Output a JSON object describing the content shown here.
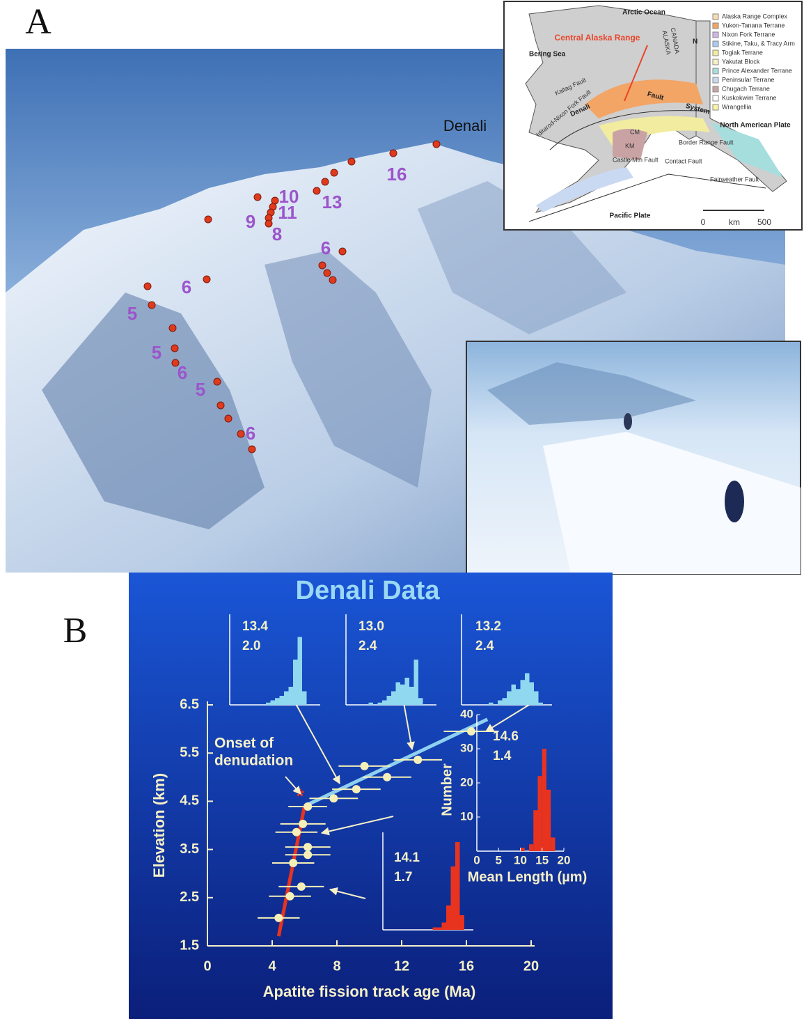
{
  "figure_labels": {
    "a": "A",
    "b": "B"
  },
  "panel_a": {
    "peak_label": "Denali",
    "sample_labels": [
      "16",
      "13",
      "10",
      "11",
      "9",
      "8",
      "6",
      "6",
      "5",
      "5",
      "6",
      "5",
      "6"
    ]
  },
  "map": {
    "ocean_labels": [
      "Arctic Ocean",
      "Bering Sea"
    ],
    "highlight": "Central Alaska Range",
    "country_labels": [
      "CANADA",
      "ALASKA"
    ],
    "north": "N",
    "fault_labels": [
      "Kaltag Fault",
      "Iditarod-Nixon Fork Fault",
      "Denali",
      "Fault",
      "System",
      "Castle Mtn Fault",
      "Border Range Fault",
      "Contact Fault",
      "Fairweather Fault"
    ],
    "plate_labels": [
      "North American Plate",
      "Pacific Plate"
    ],
    "block_labels": [
      "CM",
      "KM"
    ],
    "scale": [
      "0",
      "km",
      "500"
    ],
    "legend": [
      {
        "label": "Alaska Range Complex",
        "color": "#f7dcb4"
      },
      {
        "label": "Yukon-Tanana Terrane",
        "color": "#f2a565"
      },
      {
        "label": "Nixon Fork Terrane",
        "color": "#cdb6e4"
      },
      {
        "label": "Stikine, Taku, & Tracy Arm",
        "color": "#a9c9f0"
      },
      {
        "label": "Togiak Terrane",
        "color": "#f2eca0"
      },
      {
        "label": "Yakutat Block",
        "color": "#f8efc4"
      },
      {
        "label": "Prince Alexander Terrane",
        "color": "#a6dede"
      },
      {
        "label": "Peninsular Terrane",
        "color": "#cad9f2"
      },
      {
        "label": "Chugach Terrane",
        "color": "#c9a3a3"
      },
      {
        "label": "Kuskokwim Terrane",
        "color": "#ffffff"
      },
      {
        "label": "Wrangellia",
        "color": "#f8f6a2"
      }
    ]
  },
  "chart_data": {
    "type": "scatter",
    "title": "Denali Data",
    "xlabel": "Apatite fission track age (Ma)",
    "ylabel": "Elevation (km)",
    "xlim": [
      0,
      20
    ],
    "ylim": [
      1.5,
      6.5
    ],
    "xticks": [
      0,
      4,
      8,
      12,
      16,
      20
    ],
    "yticks": [
      1.5,
      2.5,
      3.5,
      4.5,
      5.5,
      6.5
    ],
    "series": [
      {
        "color": "#f6f0b8",
        "x": [
          16.3,
          13.0,
          9.7,
          11.1,
          9.2,
          7.8,
          6.2,
          5.9,
          5.5,
          6.2,
          6.2,
          5.3,
          5.8,
          5.1,
          4.4
        ],
        "y": [
          5.95,
          5.36,
          5.23,
          5.0,
          4.75,
          4.56,
          4.39,
          4.03,
          3.86,
          3.55,
          3.39,
          3.22,
          2.73,
          2.53,
          2.08
        ],
        "xerr": [
          1.7,
          1.5,
          1.6,
          1.5,
          1.5,
          1.5,
          1.2,
          1.4,
          1.3,
          1.4,
          1.4,
          1.3,
          1.4,
          1.3,
          1.3
        ]
      }
    ],
    "lines": [
      {
        "color": "#e8331f",
        "x": [
          4.4,
          6.0
        ],
        "y": [
          1.7,
          4.4
        ]
      },
      {
        "color": "#8fd0f0",
        "x": [
          6.0,
          17.3
        ],
        "y": [
          4.4,
          6.2
        ]
      }
    ],
    "annotation": [
      "Onset of",
      "denudation"
    ],
    "histograms": [
      {
        "color": "#8fd8f0",
        "text": [
          "13.4",
          "2.0"
        ],
        "bins": [
          5,
          6,
          7,
          8,
          9,
          10,
          11,
          12,
          13,
          14,
          15,
          16,
          17,
          18
        ],
        "counts": [
          0,
          0,
          0,
          1,
          2,
          3,
          4,
          6,
          8,
          20,
          30,
          6,
          0
        ]
      },
      {
        "color": "#8fd8f0",
        "text": [
          "13.0",
          "2.4"
        ],
        "bins": [
          5,
          6,
          7,
          8,
          9,
          10,
          11,
          12,
          13,
          14,
          15,
          16,
          17,
          18
        ],
        "counts": [
          1,
          0,
          1,
          2,
          4,
          6,
          10,
          9,
          12,
          8,
          20,
          3,
          0
        ]
      },
      {
        "color": "#8fd8f0",
        "text": [
          "13.2",
          "2.4"
        ],
        "bins": [
          5,
          6,
          7,
          8,
          9,
          10,
          11,
          12,
          13,
          14,
          15,
          16,
          17,
          18
        ],
        "counts": [
          0,
          1,
          0,
          2,
          3,
          6,
          9,
          7,
          11,
          14,
          10,
          6,
          1
        ]
      },
      {
        "color": "#e8331f",
        "text": [
          "14.6",
          "1.4"
        ],
        "bins": [
          5,
          6,
          7,
          8,
          9,
          10,
          11,
          12,
          13,
          14,
          15,
          16,
          17,
          18
        ],
        "counts": [
          0,
          0,
          0,
          0,
          0,
          1,
          0,
          2,
          12,
          22,
          30,
          18,
          4
        ],
        "xlabel": "Mean Length (µm)",
        "ylabel": "Number",
        "xlim": [
          0,
          20
        ],
        "ylim": [
          0,
          40
        ],
        "xticks": [
          0,
          5,
          10,
          15,
          20
        ],
        "yticks": [
          10,
          20,
          30,
          40
        ]
      },
      {
        "color": "#e8331f",
        "text": [
          "14.1",
          "1.7"
        ],
        "bins": [
          5,
          6,
          7,
          8,
          9,
          10,
          11,
          12,
          13,
          14,
          15,
          16,
          17,
          18
        ],
        "counts": [
          0,
          0,
          0,
          0,
          0,
          0,
          1,
          1,
          3,
          10,
          26,
          36,
          6
        ]
      }
    ]
  }
}
